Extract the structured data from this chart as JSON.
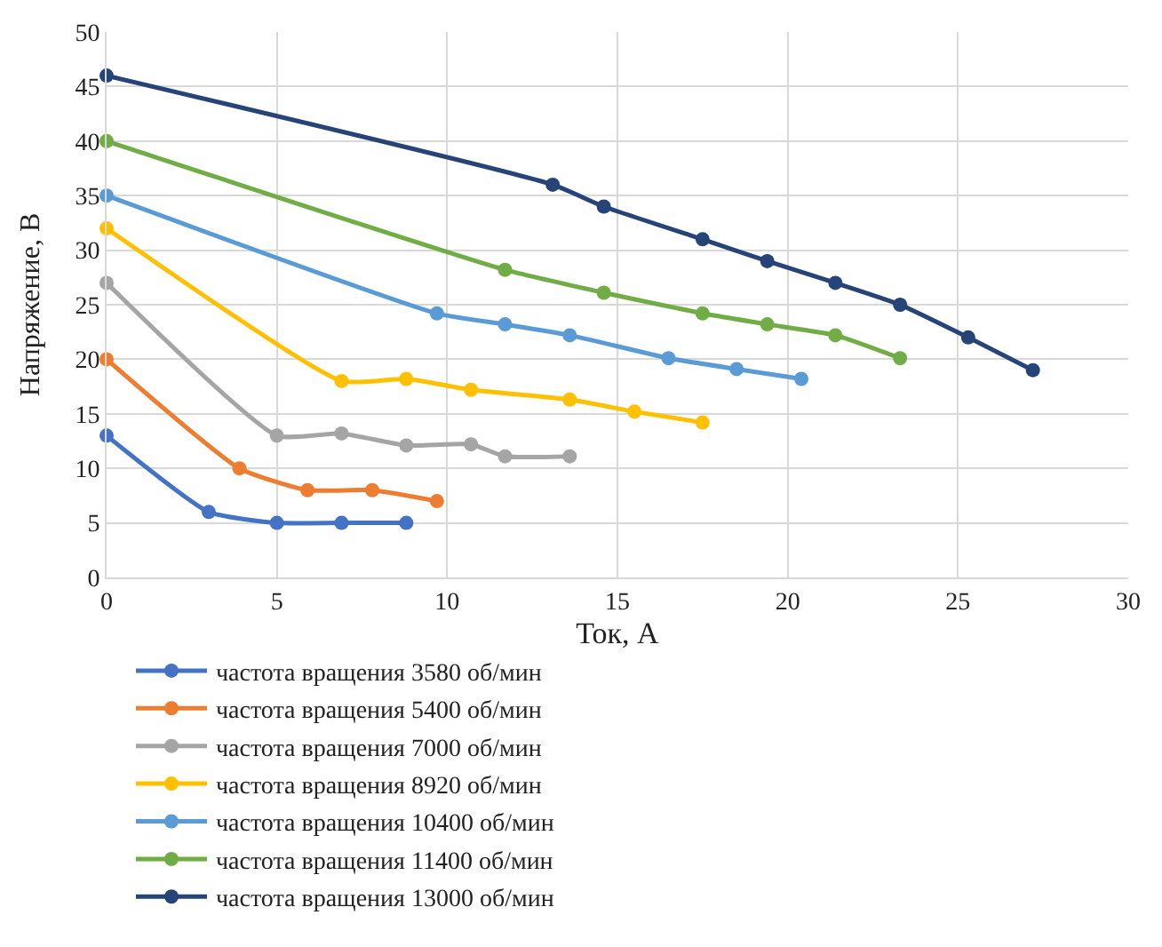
{
  "chart_data": {
    "type": "line",
    "xlabel": "Ток, А",
    "ylabel": "Напряжение, В",
    "xlim": [
      0,
      30
    ],
    "xticks": [
      0,
      5,
      10,
      15,
      20,
      25,
      30
    ],
    "ylim": [
      0,
      50
    ],
    "yticks": [
      0,
      5,
      10,
      15,
      20,
      25,
      30,
      35,
      40,
      45,
      50
    ],
    "grid": true,
    "legend": "bottom",
    "marker": "circle",
    "line_style": "solid",
    "series": [
      {
        "name": "частота вращения 3580 об/мин",
        "color": "#4472c4",
        "x": [
          0,
          3,
          5,
          6.9,
          8.8
        ],
        "values": [
          13,
          6,
          5,
          5,
          5
        ]
      },
      {
        "name": "частота вращения 5400 об/мин",
        "color": "#ed7d31",
        "x": [
          0,
          3.9,
          5.9,
          7.8,
          9.7
        ],
        "values": [
          20,
          10,
          8,
          8,
          7
        ]
      },
      {
        "name": "частота вращения 7000 об/мин",
        "color": "#a5a5a5",
        "x": [
          0,
          5,
          6.9,
          8.8,
          10.7,
          11.7,
          13.6
        ],
        "values": [
          27,
          13,
          13.2,
          12.1,
          12.2,
          11.1,
          11.1
        ]
      },
      {
        "name": "частота вращения 8920 об/мин",
        "color": "#ffc000",
        "x": [
          0,
          6.9,
          8.8,
          10.7,
          13.6,
          15.5,
          17.5
        ],
        "values": [
          32,
          18,
          18.2,
          17.2,
          16.3,
          15.2,
          14.2
        ]
      },
      {
        "name": "частота вращения 10400 об/мин",
        "color": "#5b9bd5",
        "x": [
          0,
          9.7,
          11.7,
          13.6,
          16.5,
          18.5,
          20.4
        ],
        "values": [
          35,
          24.2,
          23.2,
          22.2,
          20.1,
          19.1,
          18.2
        ]
      },
      {
        "name": "частота вращения 11400 об/мин",
        "color": "#70ad47",
        "x": [
          0,
          11.7,
          14.6,
          17.5,
          19.4,
          21.4,
          23.3
        ],
        "values": [
          40,
          28.2,
          26.1,
          24.2,
          23.2,
          22.2,
          20.1
        ]
      },
      {
        "name": "частота вращения 13000 об/мин",
        "color": "#264478",
        "x": [
          0,
          13.1,
          14.6,
          17.5,
          19.4,
          21.4,
          23.3,
          25.3,
          27.2
        ],
        "values": [
          46,
          36,
          34,
          31,
          29,
          27,
          25,
          22,
          19
        ]
      }
    ]
  }
}
